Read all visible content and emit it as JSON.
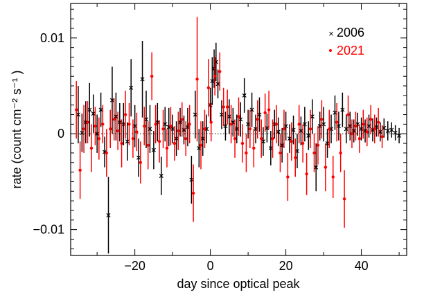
{
  "chart_data": {
    "type": "scatter",
    "xlabel": "day since optical peak",
    "ylabel": "rate (count cm⁻² s⁻¹ )",
    "xlim": [
      -37,
      52
    ],
    "ylim": [
      -0.0127,
      0.0136
    ],
    "x_ticks": [
      -20,
      0,
      20,
      40
    ],
    "x_tick_labels": [
      "−20",
      "0",
      "20",
      "40"
    ],
    "y_ticks": [
      -0.01,
      0,
      0.01
    ],
    "y_tick_labels": [
      "−0.01",
      "0",
      "0.01"
    ],
    "zero_line": true,
    "legend_position": "top-right",
    "series": [
      {
        "name": "2006",
        "color": "#000000",
        "marker": "cross",
        "points": [
          {
            "x": -35.0,
            "y": 0.002,
            "err": 0.003
          },
          {
            "x": -34.0,
            "y": 0.0001,
            "err": 0.002
          },
          {
            "x": -33.0,
            "y": 0.0012,
            "err": 0.0022
          },
          {
            "x": -32.0,
            "y": 0.0025,
            "err": 0.0028
          },
          {
            "x": -31.0,
            "y": 0.0021,
            "err": 0.002
          },
          {
            "x": -30.0,
            "y": 0.0,
            "err": 0.002
          },
          {
            "x": -29.0,
            "y": 0.0025,
            "err": 0.0018
          },
          {
            "x": -28.0,
            "y": -0.0019,
            "err": 0.0016
          },
          {
            "x": -27.0,
            "y": -0.0085,
            "err": 0.004
          },
          {
            "x": -26.0,
            "y": 0.0035,
            "err": 0.0035
          },
          {
            "x": -25.0,
            "y": 0.0018,
            "err": 0.0025
          },
          {
            "x": -24.0,
            "y": 0.0012,
            "err": 0.002
          },
          {
            "x": -23.0,
            "y": 0.001,
            "err": 0.0022
          },
          {
            "x": -22.0,
            "y": -0.0008,
            "err": 0.002
          },
          {
            "x": -21.0,
            "y": 0.0048,
            "err": 0.003
          },
          {
            "x": -20.0,
            "y": 0.0008,
            "err": 0.0022
          },
          {
            "x": -19.0,
            "y": -0.0025,
            "err": 0.002
          },
          {
            "x": -18.0,
            "y": 0.0057,
            "err": 0.004
          },
          {
            "x": -17.0,
            "y": 0.0015,
            "err": 0.003
          },
          {
            "x": -16.0,
            "y": 0.0005,
            "err": 0.0025
          },
          {
            "x": -15.0,
            "y": -0.0017,
            "err": 0.002
          },
          {
            "x": -14.0,
            "y": 0.0012,
            "err": 0.002
          },
          {
            "x": -13.0,
            "y": -0.0044,
            "err": 0.002
          },
          {
            "x": -12.0,
            "y": 0.001,
            "err": 0.0018
          },
          {
            "x": -11.0,
            "y": 0.0007,
            "err": 0.002
          },
          {
            "x": -10.0,
            "y": 0.0005,
            "err": 0.0015
          },
          {
            "x": -9.0,
            "y": -0.0005,
            "err": 0.0018
          },
          {
            "x": -8.0,
            "y": 0.0012,
            "err": 0.0015
          },
          {
            "x": -7.0,
            "y": 0.0004,
            "err": 0.0015
          },
          {
            "x": -6.0,
            "y": 0.0007,
            "err": 0.002
          },
          {
            "x": -5.0,
            "y": -0.0048,
            "err": 0.0025
          },
          {
            "x": -4.0,
            "y": 0.002,
            "err": 0.0025
          },
          {
            "x": -3.0,
            "y": -0.0015,
            "err": 0.002
          },
          {
            "x": -2.0,
            "y": -0.0005,
            "err": 0.0018
          },
          {
            "x": -1.0,
            "y": 0.0005,
            "err": 0.0015
          },
          {
            "x": 0.0,
            "y": 0.003,
            "err": 0.0018
          },
          {
            "x": 0.5,
            "y": 0.0055,
            "err": 0.0025
          },
          {
            "x": 1.0,
            "y": 0.0068,
            "err": 0.002
          },
          {
            "x": 1.5,
            "y": 0.0075,
            "err": 0.002
          },
          {
            "x": 2.0,
            "y": 0.0052,
            "err": 0.0015
          },
          {
            "x": 3.0,
            "y": 0.002,
            "err": 0.0015
          },
          {
            "x": 4.0,
            "y": 0.0008,
            "err": 0.0015
          },
          {
            "x": 5.0,
            "y": 0.0018,
            "err": 0.0018
          },
          {
            "x": 6.0,
            "y": 0.0012,
            "err": 0.0015
          },
          {
            "x": 7.0,
            "y": 0.0005,
            "err": 0.0015
          },
          {
            "x": 8.0,
            "y": 0.0015,
            "err": 0.0018
          },
          {
            "x": 9.0,
            "y": 0.004,
            "err": 0.0018
          },
          {
            "x": 10.0,
            "y": 0.001,
            "err": 0.0015
          },
          {
            "x": 11.0,
            "y": 0.0025,
            "err": 0.0018
          },
          {
            "x": 12.0,
            "y": 0.0005,
            "err": 0.0015
          },
          {
            "x": 13.0,
            "y": 0.002,
            "err": 0.0018
          },
          {
            "x": 14.0,
            "y": -0.0008,
            "err": 0.0015
          },
          {
            "x": 15.0,
            "y": 0.0006,
            "err": 0.0015
          },
          {
            "x": 16.0,
            "y": -0.0015,
            "err": 0.0018
          },
          {
            "x": 17.0,
            "y": 0.001,
            "err": 0.0015
          },
          {
            "x": 18.0,
            "y": 0.0002,
            "err": 0.0015
          },
          {
            "x": 19.0,
            "y": -0.0012,
            "err": 0.0018
          },
          {
            "x": 20.0,
            "y": 0.0008,
            "err": 0.0015
          },
          {
            "x": 21.0,
            "y": -0.0005,
            "err": 0.0015
          },
          {
            "x": 22.0,
            "y": 0.0004,
            "err": 0.0015
          },
          {
            "x": 23.0,
            "y": -0.0018,
            "err": 0.0018
          },
          {
            "x": 24.0,
            "y": 0.0003,
            "err": 0.0015
          },
          {
            "x": 25.0,
            "y": 0.001,
            "err": 0.0018
          },
          {
            "x": 26.0,
            "y": -0.0002,
            "err": 0.0015
          },
          {
            "x": 27.0,
            "y": 0.0018,
            "err": 0.0018
          },
          {
            "x": 28.0,
            "y": -0.0035,
            "err": 0.0025
          },
          {
            "x": 29.0,
            "y": 0.0008,
            "err": 0.0015
          },
          {
            "x": 30.0,
            "y": 0.001,
            "err": 0.0018
          },
          {
            "x": 31.0,
            "y": -0.001,
            "err": 0.0015
          },
          {
            "x": 32.0,
            "y": 0.0005,
            "err": 0.0015
          },
          {
            "x": 33.0,
            "y": 0.0022,
            "err": 0.0018
          },
          {
            "x": 34.0,
            "y": 0.0008,
            "err": 0.0015
          },
          {
            "x": 35.0,
            "y": 0.0025,
            "err": 0.0018
          },
          {
            "x": 36.0,
            "y": 0.0005,
            "err": 0.0015
          },
          {
            "x": 37.0,
            "y": 0.0008,
            "err": 0.0015
          },
          {
            "x": 38.0,
            "y": 0.0003,
            "err": 0.0012
          },
          {
            "x": 39.0,
            "y": 0.001,
            "err": 0.0012
          },
          {
            "x": 40.0,
            "y": 0.0005,
            "err": 0.0012
          },
          {
            "x": 41.0,
            "y": 0.0003,
            "err": 0.0012
          },
          {
            "x": 42.0,
            "y": 0.0008,
            "err": 0.0012
          },
          {
            "x": 43.0,
            "y": 0.0004,
            "err": 0.0012
          },
          {
            "x": 44.0,
            "y": 0.0007,
            "err": 0.001
          },
          {
            "x": 45.0,
            "y": 0.0002,
            "err": 0.001
          },
          {
            "x": 46.0,
            "y": 0.0006,
            "err": 0.001
          },
          {
            "x": 47.0,
            "y": 0.0003,
            "err": 0.001
          },
          {
            "x": 48.0,
            "y": 0.0004,
            "err": 0.0008
          },
          {
            "x": 49.0,
            "y": 0.0001,
            "err": 0.0008
          },
          {
            "x": 50.0,
            "y": -0.0002,
            "err": 0.0008
          }
        ]
      },
      {
        "name": "2021",
        "color": "#ff0000",
        "marker": "dot",
        "points": [
          {
            "x": -35.5,
            "y": 0.0025,
            "err": 0.003
          },
          {
            "x": -34.5,
            "y": -0.0038,
            "err": 0.003
          },
          {
            "x": -33.5,
            "y": 0.0005,
            "err": 0.0025
          },
          {
            "x": -32.5,
            "y": 0.0012,
            "err": 0.0022
          },
          {
            "x": -31.5,
            "y": -0.0015,
            "err": 0.0025
          },
          {
            "x": -30.5,
            "y": 0.0008,
            "err": 0.002
          },
          {
            "x": -29.5,
            "y": -0.0005,
            "err": 0.0022
          },
          {
            "x": -28.5,
            "y": 0.001,
            "err": 0.002
          },
          {
            "x": -27.5,
            "y": -0.002,
            "err": 0.0025
          },
          {
            "x": -26.5,
            "y": 0.0005,
            "err": 0.002
          },
          {
            "x": -25.5,
            "y": 0.0015,
            "err": 0.0022
          },
          {
            "x": -24.5,
            "y": 0.0003,
            "err": 0.002
          },
          {
            "x": -23.5,
            "y": -0.001,
            "err": 0.0025
          },
          {
            "x": -22.5,
            "y": 0.002,
            "err": 0.0025
          },
          {
            "x": -21.5,
            "y": 0.001,
            "err": 0.0022
          },
          {
            "x": -20.5,
            "y": -0.0005,
            "err": 0.002
          },
          {
            "x": -19.5,
            "y": 0.0002,
            "err": 0.002
          },
          {
            "x": -18.5,
            "y": -0.003,
            "err": 0.0022
          },
          {
            "x": -17.5,
            "y": 0.0008,
            "err": 0.002
          },
          {
            "x": -16.5,
            "y": -0.0012,
            "err": 0.0025
          },
          {
            "x": -15.5,
            "y": 0.006,
            "err": 0.0025
          },
          {
            "x": -14.5,
            "y": 0.001,
            "err": 0.002
          },
          {
            "x": -13.5,
            "y": -0.0008,
            "err": 0.0022
          },
          {
            "x": -12.5,
            "y": 0.0005,
            "err": 0.002
          },
          {
            "x": -11.5,
            "y": -0.0015,
            "err": 0.002
          },
          {
            "x": -10.5,
            "y": 0.0008,
            "err": 0.002
          },
          {
            "x": -9.5,
            "y": -0.001,
            "err": 0.0018
          },
          {
            "x": -8.5,
            "y": 0.0003,
            "err": 0.002
          },
          {
            "x": -7.5,
            "y": 0.0015,
            "err": 0.0018
          },
          {
            "x": -6.5,
            "y": -0.0005,
            "err": 0.0018
          },
          {
            "x": -5.5,
            "y": 0.001,
            "err": 0.002
          },
          {
            "x": -4.5,
            "y": -0.0062,
            "err": 0.003
          },
          {
            "x": -3.5,
            "y": 0.0057,
            "err": 0.0065
          },
          {
            "x": -2.5,
            "y": -0.0012,
            "err": 0.0025
          },
          {
            "x": -1.5,
            "y": 0.0005,
            "err": 0.002
          },
          {
            "x": -0.5,
            "y": 0.0048,
            "err": 0.003
          },
          {
            "x": 0.2,
            "y": 0.0012,
            "err": 0.002
          },
          {
            "x": 1.2,
            "y": 0.006,
            "err": 0.002
          },
          {
            "x": 2.5,
            "y": 0.0065,
            "err": 0.002
          },
          {
            "x": 3.5,
            "y": 0.0028,
            "err": 0.002
          },
          {
            "x": 4.5,
            "y": 0.0028,
            "err": 0.0018
          },
          {
            "x": 5.5,
            "y": 0.001,
            "err": 0.002
          },
          {
            "x": 6.5,
            "y": -0.0005,
            "err": 0.002
          },
          {
            "x": 7.5,
            "y": 0.0018,
            "err": 0.002
          },
          {
            "x": 8.5,
            "y": -0.001,
            "err": 0.002
          },
          {
            "x": 9.5,
            "y": -0.002,
            "err": 0.002
          },
          {
            "x": 10.5,
            "y": 0.0005,
            "err": 0.002
          },
          {
            "x": 11.5,
            "y": -0.0015,
            "err": 0.002
          },
          {
            "x": 12.5,
            "y": 0.0015,
            "err": 0.002
          },
          {
            "x": 13.5,
            "y": -0.0005,
            "err": 0.002
          },
          {
            "x": 14.5,
            "y": 0.0022,
            "err": 0.002
          },
          {
            "x": 15.5,
            "y": 0.0025,
            "err": 0.002
          },
          {
            "x": 16.5,
            "y": -0.0005,
            "err": 0.002
          },
          {
            "x": 17.5,
            "y": 0.001,
            "err": 0.002
          },
          {
            "x": 18.5,
            "y": -0.002,
            "err": 0.002
          },
          {
            "x": 19.5,
            "y": 0.0005,
            "err": 0.002
          },
          {
            "x": 20.5,
            "y": -0.0045,
            "err": 0.0025
          },
          {
            "x": 21.5,
            "y": -0.0008,
            "err": 0.002
          },
          {
            "x": 22.5,
            "y": -0.0025,
            "err": 0.002
          },
          {
            "x": 23.5,
            "y": 0.001,
            "err": 0.002
          },
          {
            "x": 24.5,
            "y": -0.001,
            "err": 0.002
          },
          {
            "x": 25.5,
            "y": -0.0042,
            "err": 0.0022
          },
          {
            "x": 26.5,
            "y": 0.0005,
            "err": 0.002
          },
          {
            "x": 27.5,
            "y": -0.002,
            "err": 0.002
          },
          {
            "x": 28.5,
            "y": -0.0012,
            "err": 0.002
          },
          {
            "x": 29.5,
            "y": 0.0015,
            "err": 0.002
          },
          {
            "x": 30.5,
            "y": -0.0035,
            "err": 0.0025
          },
          {
            "x": 31.5,
            "y": 0.0005,
            "err": 0.002
          },
          {
            "x": 32.5,
            "y": -0.0045,
            "err": 0.0022
          },
          {
            "x": 33.5,
            "y": 0.0012,
            "err": 0.002
          },
          {
            "x": 34.5,
            "y": -0.002,
            "err": 0.002
          },
          {
            "x": 35.5,
            "y": -0.0068,
            "err": 0.003
          },
          {
            "x": 36.5,
            "y": 0.002,
            "err": 0.002
          },
          {
            "x": 37.5,
            "y": 0.0,
            "err": 0.0015
          },
          {
            "x": 38.5,
            "y": 0.0008,
            "err": 0.0015
          },
          {
            "x": 39.5,
            "y": -0.0005,
            "err": 0.0015
          },
          {
            "x": 40.5,
            "y": 0.001,
            "err": 0.0015
          },
          {
            "x": 41.5,
            "y": 0.0002,
            "err": 0.0015
          },
          {
            "x": 42.5,
            "y": 0.0015,
            "err": 0.0015
          },
          {
            "x": 43.5,
            "y": 0.0005,
            "err": 0.0015
          },
          {
            "x": 44.5,
            "y": 0.0012,
            "err": 0.0015
          },
          {
            "x": 45.5,
            "y": -0.0003,
            "err": 0.0012
          }
        ]
      }
    ]
  }
}
